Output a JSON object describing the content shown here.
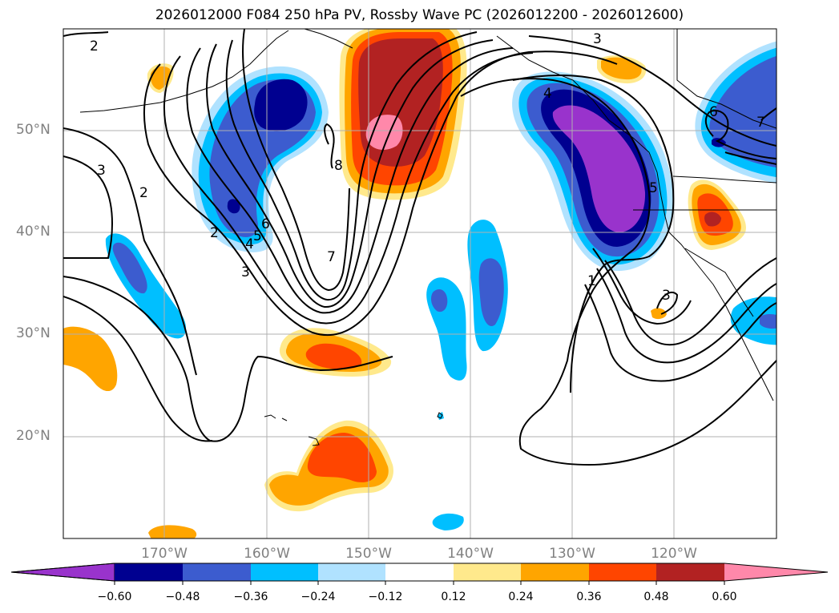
{
  "title": "2026012000 F084 250 hPa PV, Rossby Wave PC (2026012200 - 2026012600)",
  "map": {
    "lat_labels": [
      "50°N",
      "40°N",
      "30°N",
      "20°N"
    ],
    "lon_labels": [
      "170°W",
      "160°W",
      "150°W",
      "140°W",
      "130°W",
      "120°W"
    ],
    "contour_labels": [
      "2",
      "3",
      "3",
      "2",
      "2",
      "4",
      "5",
      "6",
      "3",
      "7",
      "8",
      "1",
      "5",
      "4",
      "6",
      "7",
      "3"
    ]
  },
  "colorbar": {
    "ticks": [
      "−0.60",
      "−0.48",
      "−0.36",
      "−0.24",
      "−0.12",
      "0.12",
      "0.24",
      "0.36",
      "0.48",
      "0.60"
    ],
    "colors": [
      "#9933cc",
      "#000090",
      "#3c5ccf",
      "#00bfff",
      "#b0e2ff",
      "#ffffff",
      "#ffe98c",
      "#ffa500",
      "#ff4500",
      "#b22222",
      "#ff88aa",
      "#ff88aa"
    ]
  }
}
